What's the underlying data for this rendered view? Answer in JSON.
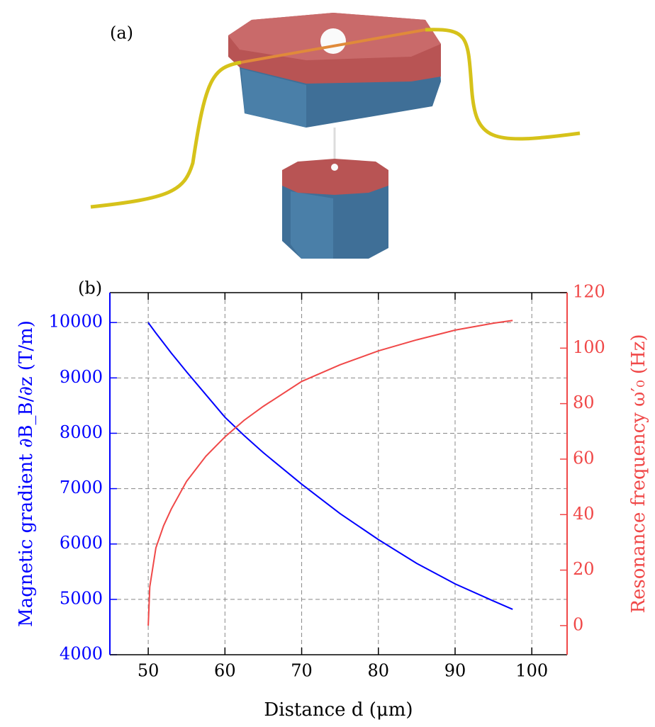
{
  "panel_labels": [
    "(a)",
    "(b)"
  ],
  "chart_data": {
    "type": "line",
    "x_label": "Distance d (μm)",
    "y_label": "Magnetic gradient ∂B_B/∂z (T/m)",
    "y2_label": "Resonance frequency ω′₀ (Hz)",
    "x": [
      50,
      50.2,
      51,
      52,
      53,
      55,
      57.5,
      60,
      62.5,
      65,
      70,
      75,
      80,
      85,
      90,
      95,
      97.5
    ],
    "series": [
      {
        "color": "#0000ff",
        "axis": "y",
        "values": [
          10000,
          9960,
          9810,
          9630,
          9450,
          9110,
          8700,
          8290,
          7960,
          7650,
          7080,
          6550,
          6080,
          5650,
          5280,
          4970,
          4820
        ]
      },
      {
        "color": "#f04848",
        "axis": "y2",
        "values": [
          0,
          14,
          28,
          36,
          42,
          52,
          61,
          68,
          74,
          79,
          88,
          94,
          99,
          103,
          106.5,
          109,
          110
        ]
      }
    ],
    "xlim": [
      45,
      104.6
    ],
    "xticks": [
      50,
      60,
      70,
      80,
      90,
      100
    ],
    "ylim": [
      4000,
      10540
    ],
    "yticks": [
      4000,
      5000,
      6000,
      7000,
      8000,
      9000,
      10000
    ],
    "y2lim": [
      -10.5,
      120
    ],
    "y2ticks": [
      0,
      20,
      40,
      60,
      80,
      100,
      120
    ],
    "grid": true
  }
}
